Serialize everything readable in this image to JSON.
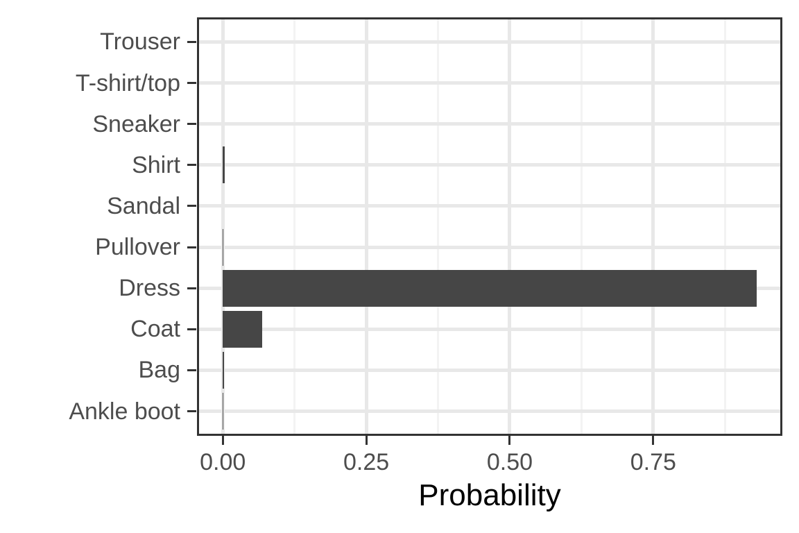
{
  "chart_data": {
    "type": "bar",
    "orientation": "horizontal",
    "title": "",
    "xlabel": "Probability",
    "ylabel": "",
    "categories": [
      "Trouser",
      "T-shirt/top",
      "Sneaker",
      "Shirt",
      "Sandal",
      "Pullover",
      "Dress",
      "Coat",
      "Bag",
      "Ankle boot"
    ],
    "values": [
      0,
      0,
      0,
      0.003,
      0,
      0.001,
      0.93,
      0.068,
      0.002,
      0.001
    ],
    "x_ticks": {
      "values": [
        0,
        0.25,
        0.5,
        0.75
      ],
      "labels": [
        "0.00",
        "0.25",
        "0.50",
        "0.75"
      ]
    },
    "x_minor_ticks": [
      0.125,
      0.375,
      0.625,
      0.875
    ],
    "xlim": [
      -0.045,
      0.975
    ],
    "bar_width_fraction": 0.9,
    "grid": "vertical major+minor, horizontal major at category centers",
    "legend": "none",
    "colors": {
      "bar": "#464646",
      "panel_background": "#ffffff",
      "panel_border": "#333333",
      "tick_mark": "#333333",
      "major_grid": "#e8e8e8",
      "minor_grid": "#f3f3f3",
      "axis_text": "#4d4d4d",
      "axis_title": "#000000",
      "background": "#ffffff"
    }
  }
}
